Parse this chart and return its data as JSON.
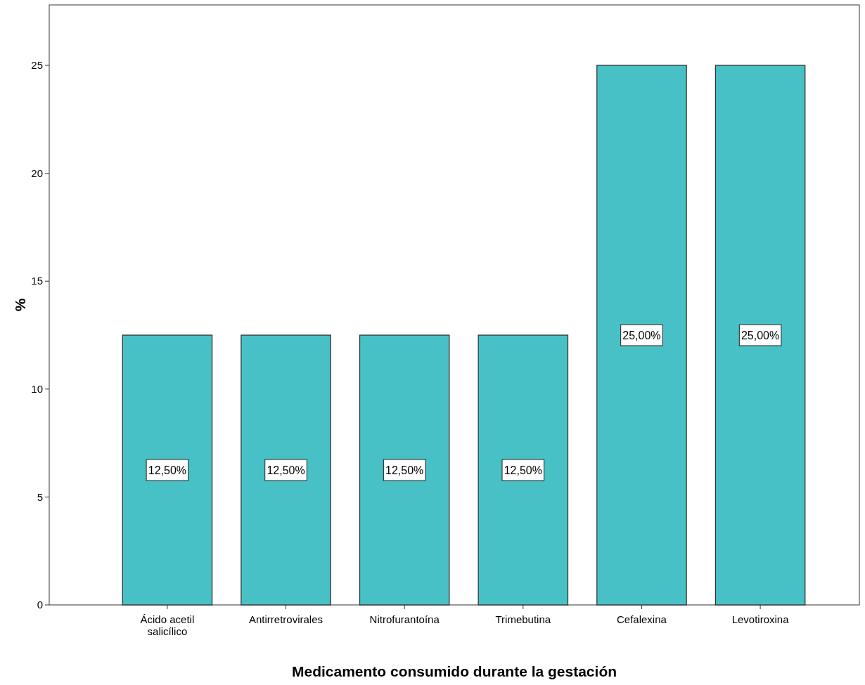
{
  "chart_data": {
    "type": "bar",
    "xlabel": "Medicamento consumido durante la gestación",
    "ylabel": "%",
    "categories": [
      "Ácido acetil salicílico",
      "Antirretrovirales",
      "Nitrofurantoína",
      "Trimebutina",
      "Cefalexina",
      "Levotiroxina"
    ],
    "values": [
      12.5,
      12.5,
      12.5,
      12.5,
      25,
      25
    ],
    "value_labels": [
      "12,50%",
      "12,50%",
      "12,50%",
      "12,50%",
      "25,00%",
      "25,00%"
    ],
    "color": "#48c1c6",
    "ylim": [
      0,
      27.8
    ],
    "yticks": [
      0,
      5,
      10,
      15,
      20,
      25
    ],
    "grid": false
  }
}
